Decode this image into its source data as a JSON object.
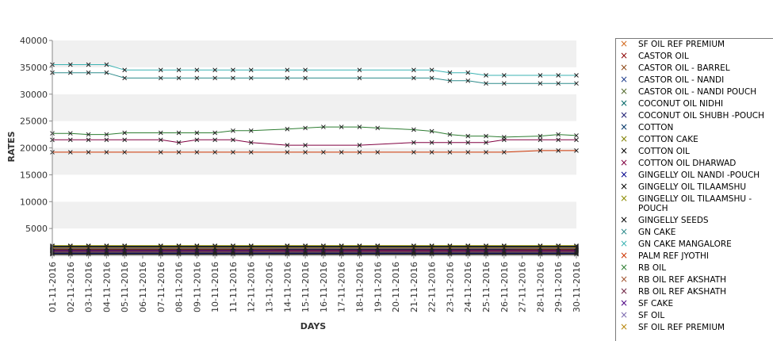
{
  "chart_data": {
    "type": "line",
    "title": "",
    "xlabel": "DAYS",
    "ylabel": "RATES",
    "ylim": [
      0,
      40000
    ],
    "yticks": [
      5000,
      10000,
      15000,
      20000,
      25000,
      30000,
      35000,
      40000
    ],
    "grid": "alternating horizontal bands",
    "legend_position": "right",
    "categories": [
      "01-11-2016",
      "02-11-2016",
      "03-11-2016",
      "04-11-2016",
      "05-11-2016",
      "06-11-2016",
      "07-11-2016",
      "08-11-2016",
      "09-11-2016",
      "10-11-2016",
      "11-11-2016",
      "12-11-2016",
      "13-11-2016",
      "14-11-2016",
      "15-11-2016",
      "16-11-2016",
      "17-11-2016",
      "18-11-2016",
      "19-11-2016",
      "20-11-2016",
      "21-11-2016",
      "22-11-2016",
      "23-11-2016",
      "24-11-2016",
      "25-11-2016",
      "26-11-2016",
      "27-11-2016",
      "28-11-2016",
      "29-11-2016",
      "30-11-2016"
    ],
    "series": [
      {
        "name": " SF OIL REF PREMIUM",
        "color": "#d2691e",
        "values": [
          1100,
          1100,
          1100,
          1100,
          1100,
          null,
          1100,
          1100,
          1100,
          1100,
          1100,
          1100,
          null,
          1100,
          1100,
          1100,
          1100,
          1100,
          1100,
          null,
          1100,
          1100,
          1100,
          1100,
          1100,
          1100,
          null,
          1100,
          1100,
          1100
        ]
      },
      {
        "name": "CASTOR OIL",
        "color": "#8b0000",
        "values": [
          900,
          900,
          900,
          900,
          900,
          null,
          900,
          900,
          900,
          900,
          900,
          900,
          null,
          900,
          900,
          900,
          900,
          900,
          900,
          null,
          900,
          900,
          900,
          900,
          900,
          900,
          null,
          900,
          900,
          900
        ]
      },
      {
        "name": "CASTOR OIL - BARREL",
        "color": "#8b4513",
        "values": [
          1000,
          1000,
          1000,
          1000,
          1000,
          null,
          1000,
          1000,
          1000,
          1000,
          1000,
          1000,
          null,
          1000,
          1000,
          1000,
          1000,
          1000,
          1000,
          null,
          1000,
          1000,
          1000,
          1000,
          1000,
          1000,
          null,
          1000,
          1000,
          1000
        ]
      },
      {
        "name": "CASTOR OIL - NANDI",
        "color": "#1e3c8c",
        "values": [
          850,
          850,
          850,
          850,
          850,
          null,
          850,
          850,
          850,
          850,
          850,
          850,
          null,
          1100,
          1100,
          1100,
          1100,
          1100,
          1100,
          null,
          1100,
          1100,
          1100,
          1100,
          1100,
          1100,
          null,
          1300,
          1300,
          1300
        ]
      },
      {
        "name": "CASTOR OIL - NANDI POUCH",
        "color": "#556b2f",
        "values": [
          700,
          700,
          700,
          700,
          700,
          null,
          700,
          700,
          700,
          700,
          700,
          700,
          null,
          700,
          700,
          700,
          700,
          700,
          700,
          null,
          700,
          700,
          700,
          700,
          700,
          700,
          null,
          700,
          700,
          700
        ]
      },
      {
        "name": "COCONUT OIL NIDHI",
        "color": "#006666",
        "values": [
          1500,
          1500,
          1500,
          1500,
          1500,
          null,
          1500,
          1500,
          1500,
          1500,
          1500,
          1500,
          null,
          1500,
          1500,
          1500,
          1500,
          1500,
          1500,
          null,
          1500,
          1500,
          1500,
          1500,
          1500,
          1500,
          null,
          1500,
          1500,
          1500
        ]
      },
      {
        "name": "COCONUT OIL SHUBH -POUCH",
        "color": "#191970",
        "values": [
          1600,
          1600,
          1600,
          1600,
          1600,
          null,
          1600,
          1600,
          1600,
          1600,
          1600,
          1600,
          null,
          1600,
          1600,
          1600,
          1600,
          1600,
          1600,
          null,
          1600,
          1600,
          1600,
          1600,
          1600,
          1600,
          null,
          1600,
          1600,
          1600
        ]
      },
      {
        "name": "COTTON",
        "color": "#003366",
        "values": [
          500,
          500,
          500,
          500,
          500,
          null,
          500,
          500,
          500,
          500,
          500,
          500,
          null,
          500,
          500,
          500,
          500,
          500,
          500,
          null,
          500,
          500,
          500,
          500,
          500,
          500,
          null,
          500,
          500,
          500
        ]
      },
      {
        "name": "COTTON CAKE",
        "color": "#808000",
        "values": [
          300,
          300,
          300,
          300,
          300,
          null,
          300,
          300,
          300,
          300,
          300,
          300,
          null,
          300,
          300,
          300,
          300,
          300,
          300,
          null,
          300,
          300,
          300,
          300,
          300,
          300,
          null,
          300,
          300,
          300
        ]
      },
      {
        "name": "COTTON OIL",
        "color": "#000000",
        "values": [
          1200,
          1200,
          1200,
          1200,
          1200,
          null,
          1200,
          1200,
          1200,
          1200,
          1200,
          1200,
          null,
          1200,
          1200,
          1200,
          1200,
          1200,
          1200,
          null,
          1200,
          1200,
          1200,
          1200,
          1200,
          1200,
          null,
          1200,
          1200,
          1200
        ]
      },
      {
        "name": "COTTON OIL DHARWAD",
        "color": "#800040",
        "values": [
          21500,
          21500,
          21500,
          21500,
          21500,
          null,
          21500,
          21000,
          21500,
          21500,
          21500,
          21000,
          null,
          20500,
          20500,
          null,
          null,
          20500,
          null,
          null,
          21000,
          21000,
          21000,
          21000,
          21000,
          21500,
          null,
          21500,
          21500,
          21500
        ]
      },
      {
        "name": "GINGELLY OIL NANDI -POUCH",
        "color": "#00008b",
        "values": [
          400,
          400,
          400,
          400,
          400,
          null,
          400,
          400,
          400,
          400,
          400,
          400,
          null,
          400,
          400,
          400,
          400,
          400,
          400,
          null,
          400,
          400,
          400,
          400,
          400,
          400,
          null,
          400,
          400,
          400
        ]
      },
      {
        "name": "GINGELLY OIL TILAAMSHU",
        "color": "#000000",
        "values": [
          1700,
          1700,
          1700,
          1700,
          1700,
          null,
          1700,
          1700,
          1700,
          1700,
          1700,
          1700,
          null,
          1700,
          1700,
          1700,
          1700,
          1700,
          1700,
          null,
          1700,
          1700,
          1700,
          1700,
          1700,
          1700,
          null,
          1700,
          1700,
          1700
        ]
      },
      {
        "name": "GINGELLY OIL TILAAMSHU -POUCH",
        "color": "#8b8b00",
        "values": [
          1800,
          1800,
          1800,
          1800,
          1800,
          null,
          1800,
          1800,
          1800,
          1800,
          1800,
          1800,
          null,
          1800,
          1800,
          1800,
          1800,
          1800,
          1800,
          null,
          1800,
          1800,
          1800,
          1800,
          1800,
          1800,
          null,
          1800,
          1800,
          1800
        ]
      },
      {
        "name": "GINGELLY SEEDS",
        "color": "#000000",
        "values": [
          200,
          200,
          200,
          200,
          200,
          null,
          200,
          200,
          200,
          200,
          200,
          200,
          null,
          200,
          200,
          200,
          200,
          200,
          200,
          null,
          200,
          200,
          200,
          200,
          200,
          200,
          null,
          200,
          200,
          200
        ]
      },
      {
        "name": "GN CAKE",
        "color": "#2e8b8b",
        "values": [
          34000,
          34000,
          34000,
          34000,
          33000,
          null,
          33000,
          33000,
          33000,
          33000,
          33000,
          33000,
          null,
          33000,
          33000,
          null,
          null,
          33000,
          null,
          null,
          33000,
          33000,
          32500,
          32500,
          32000,
          32000,
          null,
          32000,
          32000,
          32000
        ]
      },
      {
        "name": "GN CAKE MANGALORE",
        "color": "#3cb3b3",
        "values": [
          35500,
          35500,
          35500,
          35500,
          34500,
          null,
          34500,
          34500,
          34500,
          34500,
          34500,
          34500,
          null,
          34500,
          34500,
          null,
          null,
          34500,
          null,
          null,
          34500,
          34500,
          34000,
          34000,
          33500,
          33500,
          null,
          33500,
          33500,
          33500
        ]
      },
      {
        "name": "PALM REF JYOTHI",
        "color": "#cc3300",
        "values": [
          19200,
          19200,
          19200,
          19200,
          19200,
          null,
          19200,
          19200,
          19200,
          19200,
          19200,
          19200,
          null,
          19200,
          19200,
          19200,
          19200,
          19200,
          19200,
          null,
          19200,
          19200,
          19200,
          19200,
          19200,
          19200,
          null,
          19500,
          19500,
          19500
        ]
      },
      {
        "name": "RB OIL",
        "color": "#2e7d32",
        "values": [
          22700,
          22700,
          22500,
          22500,
          22800,
          null,
          22800,
          22800,
          22800,
          22800,
          23200,
          23200,
          null,
          23500,
          23700,
          23900,
          23900,
          23900,
          23700,
          null,
          23400,
          23100,
          22500,
          22200,
          22200,
          22000,
          null,
          22200,
          22500,
          22300
        ]
      },
      {
        "name": "RB OIL REF  AKSHATH",
        "color": "#a0522d",
        "values": [
          600,
          600,
          600,
          600,
          600,
          null,
          600,
          600,
          600,
          600,
          600,
          600,
          null,
          600,
          600,
          600,
          600,
          600,
          600,
          null,
          600,
          600,
          600,
          600,
          600,
          600,
          null,
          600,
          600,
          600
        ]
      },
      {
        "name": "RB OIL REF AKSHATH",
        "color": "#6b1f3f",
        "values": [
          1000,
          1000,
          1000,
          1000,
          1000,
          null,
          1000,
          1000,
          1000,
          1000,
          1000,
          1000,
          null,
          1000,
          1000,
          1000,
          1000,
          1000,
          1000,
          null,
          1000,
          1000,
          1000,
          1000,
          1000,
          1000,
          null,
          1000,
          1000,
          1000
        ]
      },
      {
        "name": "SF CAKE",
        "color": "#4b0082",
        "values": [
          800,
          800,
          800,
          800,
          800,
          null,
          800,
          800,
          800,
          800,
          800,
          800,
          null,
          800,
          800,
          800,
          800,
          800,
          800,
          null,
          800,
          800,
          800,
          800,
          800,
          800,
          null,
          800,
          800,
          800
        ]
      },
      {
        "name": "SF OIL",
        "color": "#7b68ae",
        "values": [
          1300,
          1300,
          1300,
          1300,
          1300,
          null,
          1300,
          1300,
          1300,
          1300,
          1300,
          1300,
          null,
          1300,
          1300,
          1300,
          1300,
          1300,
          1300,
          null,
          1300,
          1300,
          1300,
          1300,
          1300,
          1300,
          null,
          1300,
          1300,
          1300
        ]
      },
      {
        "name": "SF OIL REF PREMIUM",
        "color": "#b8860b",
        "values": [
          1400,
          1400,
          1400,
          1400,
          1400,
          null,
          1400,
          1400,
          1400,
          1400,
          1400,
          1400,
          null,
          1400,
          1400,
          1400,
          1400,
          1400,
          1400,
          null,
          1400,
          1400,
          1400,
          1400,
          1400,
          1400,
          null,
          1400,
          1400,
          1400
        ]
      }
    ]
  }
}
